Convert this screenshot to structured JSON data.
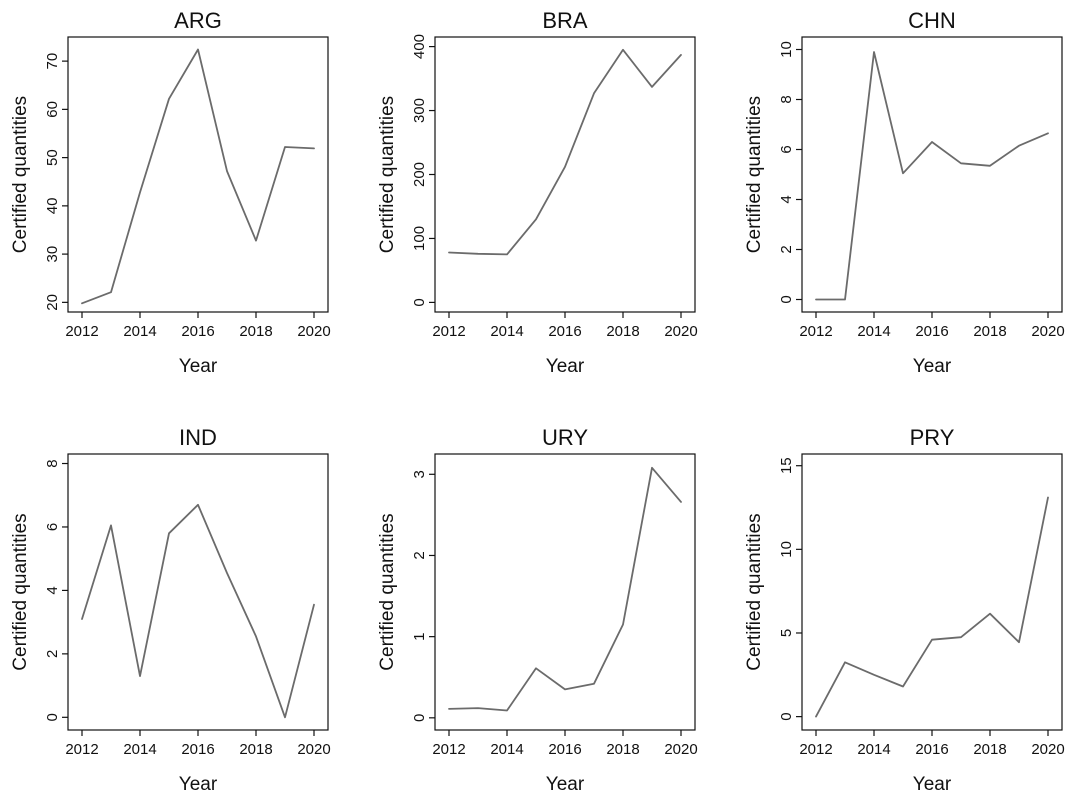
{
  "colors": {
    "line": "#6b6b6b",
    "axis": "#111111",
    "text": "#111111",
    "background": "#ffffff"
  },
  "chart_data": [
    {
      "type": "line",
      "title": "ARG",
      "xlabel": "Year",
      "ylabel": "Certified quantities",
      "grid": false,
      "x": [
        2012,
        2013,
        2014,
        2015,
        2016,
        2017,
        2018,
        2019,
        2020
      ],
      "series": [
        {
          "values": [
            19.8,
            22.1,
            42.8,
            62.2,
            72.4,
            47.2,
            32.8,
            52.2,
            51.9
          ]
        }
      ],
      "xlim": [
        2012,
        2020
      ],
      "ylim": [
        18,
        75
      ],
      "xticks": [
        2012,
        2014,
        2016,
        2018,
        2020
      ],
      "yticks": [
        20,
        30,
        40,
        50,
        60,
        70
      ],
      "xtick_labels": [
        "2012",
        "2014",
        "2016",
        "2018",
        "2020"
      ],
      "ytick_labels": [
        "20",
        "30",
        "40",
        "50",
        "60",
        "70"
      ]
    },
    {
      "type": "line",
      "title": "BRA",
      "xlabel": "Year",
      "ylabel": "Certified quantities",
      "grid": false,
      "x": [
        2012,
        2013,
        2014,
        2015,
        2016,
        2017,
        2018,
        2019,
        2020
      ],
      "series": [
        {
          "values": [
            78,
            76,
            75,
            130,
            212,
            327,
            395,
            337,
            387
          ]
        }
      ],
      "xlim": [
        2012,
        2020
      ],
      "ylim": [
        -15,
        415
      ],
      "xticks": [
        2012,
        2014,
        2016,
        2018,
        2020
      ],
      "yticks": [
        0,
        100,
        200,
        300,
        400
      ],
      "xtick_labels": [
        "2012",
        "2014",
        "2016",
        "2018",
        "2020"
      ],
      "ytick_labels": [
        "0",
        "100",
        "200",
        "300",
        "400"
      ]
    },
    {
      "type": "line",
      "title": "CHN",
      "xlabel": "Year",
      "ylabel": "Certified quantities",
      "grid": false,
      "x": [
        2012,
        2013,
        2014,
        2015,
        2016,
        2017,
        2018,
        2019,
        2020
      ],
      "series": [
        {
          "values": [
            0,
            0,
            9.9,
            5.05,
            6.3,
            5.45,
            5.35,
            6.15,
            6.65
          ]
        }
      ],
      "xlim": [
        2012,
        2020
      ],
      "ylim": [
        -0.5,
        10.5
      ],
      "xticks": [
        2012,
        2014,
        2016,
        2018,
        2020
      ],
      "yticks": [
        0,
        2,
        4,
        6,
        8,
        10
      ],
      "xtick_labels": [
        "2012",
        "2014",
        "2016",
        "2018",
        "2020"
      ],
      "ytick_labels": [
        "0",
        "2",
        "4",
        "6",
        "8",
        "10"
      ]
    },
    {
      "type": "line",
      "title": "IND",
      "xlabel": "Year",
      "ylabel": "Certified quantities",
      "grid": false,
      "x": [
        2012,
        2013,
        2014,
        2015,
        2016,
        2017,
        2018,
        2019,
        2020
      ],
      "series": [
        {
          "values": [
            3.1,
            6.05,
            1.3,
            5.8,
            6.7,
            4.55,
            2.55,
            0.0,
            3.55
          ]
        }
      ],
      "xlim": [
        2012,
        2020
      ],
      "ylim": [
        -0.4,
        8.3
      ],
      "xticks": [
        2012,
        2014,
        2016,
        2018,
        2020
      ],
      "yticks": [
        0,
        2,
        4,
        6,
        8
      ],
      "xtick_labels": [
        "2012",
        "2014",
        "2016",
        "2018",
        "2020"
      ],
      "ytick_labels": [
        "0",
        "2",
        "4",
        "6",
        "8"
      ]
    },
    {
      "type": "line",
      "title": "URY",
      "xlabel": "Year",
      "ylabel": "Certified quantities",
      "grid": false,
      "x": [
        2012,
        2013,
        2014,
        2015,
        2016,
        2017,
        2018,
        2019,
        2020
      ],
      "series": [
        {
          "values": [
            0.11,
            0.12,
            0.09,
            0.61,
            0.35,
            0.42,
            1.15,
            3.08,
            2.66
          ]
        }
      ],
      "xlim": [
        2012,
        2020
      ],
      "ylim": [
        -0.15,
        3.25
      ],
      "xticks": [
        2012,
        2014,
        2016,
        2018,
        2020
      ],
      "yticks": [
        0,
        1,
        2,
        3
      ],
      "xtick_labels": [
        "2012",
        "2014",
        "2016",
        "2018",
        "2020"
      ],
      "ytick_labels": [
        "0",
        "1",
        "2",
        "3"
      ]
    },
    {
      "type": "line",
      "title": "PRY",
      "xlabel": "Year",
      "ylabel": "Certified quantities",
      "grid": false,
      "x": [
        2012,
        2013,
        2014,
        2015,
        2016,
        2017,
        2018,
        2019,
        2020
      ],
      "series": [
        {
          "values": [
            0,
            3.25,
            2.5,
            1.8,
            4.6,
            4.75,
            6.15,
            4.45,
            13.1
          ]
        }
      ],
      "xlim": [
        2012,
        2020
      ],
      "ylim": [
        -0.8,
        15.7
      ],
      "xticks": [
        2012,
        2014,
        2016,
        2018,
        2020
      ],
      "yticks": [
        0,
        5,
        10,
        15
      ],
      "xtick_labels": [
        "2012",
        "2014",
        "2016",
        "2018",
        "2020"
      ],
      "ytick_labels": [
        "0",
        "5",
        "10",
        "15"
      ]
    }
  ]
}
